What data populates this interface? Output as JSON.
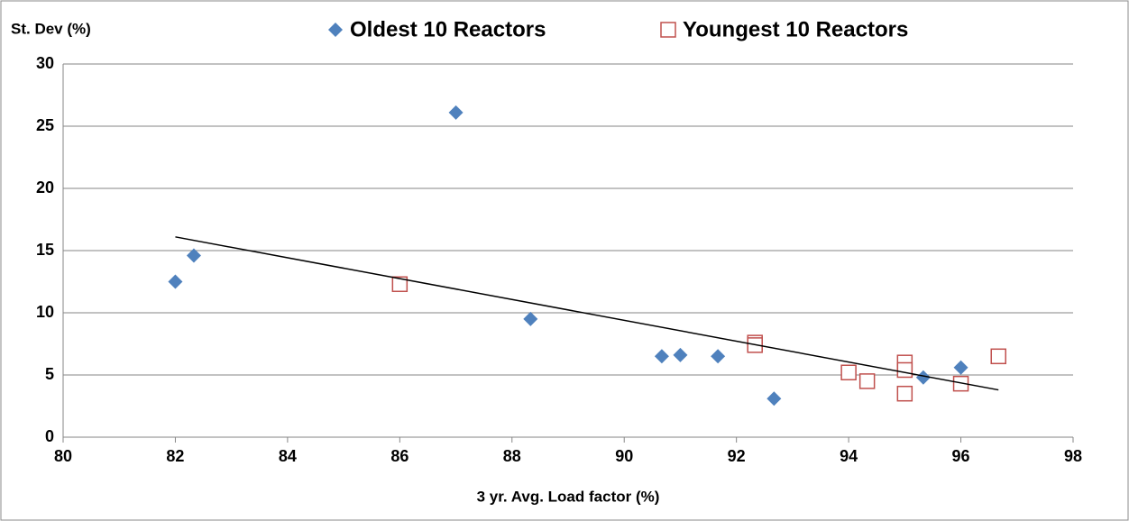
{
  "chart_data": {
    "type": "scatter",
    "y_label": "St. Dev (%)",
    "x_label": "3 yr. Avg. Load factor (%)",
    "xlim": [
      80,
      98
    ],
    "xticks": [
      80,
      82,
      84,
      86,
      88,
      90,
      92,
      94,
      96,
      98
    ],
    "ylim": [
      0,
      30
    ],
    "yticks": [
      0,
      5,
      10,
      15,
      20,
      25,
      30
    ],
    "grid": true,
    "legend": "top",
    "series": [
      {
        "name": "Oldest 10 Reactors",
        "color": "#4f81bd",
        "marker": "diamond",
        "x": [
          82,
          82.33,
          87,
          88.33,
          90.67,
          91,
          91.67,
          92.67,
          95.33,
          96
        ],
        "values": [
          12.5,
          14.6,
          26.1,
          9.5,
          6.5,
          6.6,
          6.5,
          3.1,
          4.8,
          5.6
        ]
      },
      {
        "name": "Youngest 10 Reactors",
        "color": "#c0504d",
        "marker": "square",
        "x": [
          86,
          92.33,
          92.33,
          94,
          94.33,
          95,
          95,
          95,
          96,
          96.67
        ],
        "values": [
          12.3,
          7.6,
          7.4,
          5.2,
          4.5,
          6.0,
          5.4,
          3.5,
          4.3,
          6.5
        ]
      }
    ],
    "trendline": {
      "color": "#000000",
      "x": [
        82,
        96.67
      ],
      "values": [
        16.1,
        3.8
      ]
    }
  }
}
